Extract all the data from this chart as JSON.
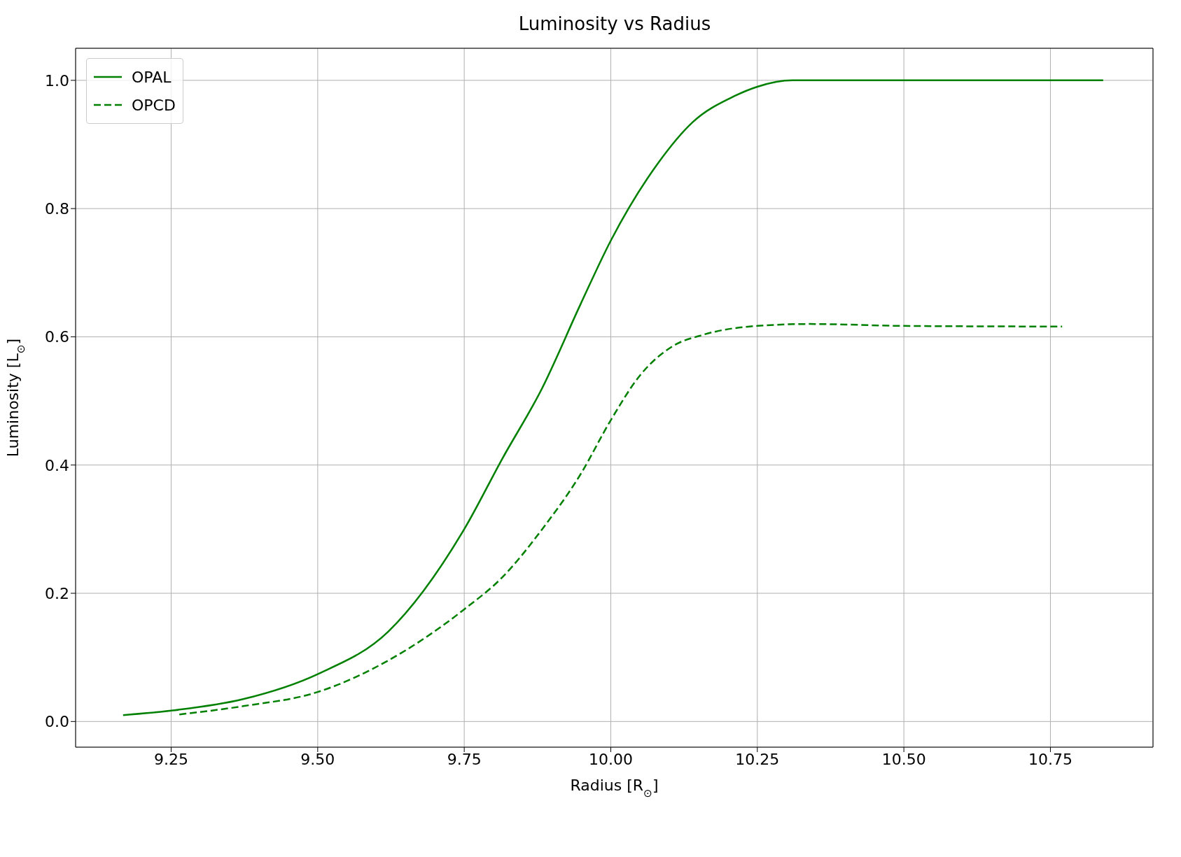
{
  "chart_data": {
    "type": "line",
    "title": "Luminosity vs Radius",
    "xlabel": "Radius [R$_{⊙}$]",
    "ylabel": "Luminosity [L$_{⊙}$]",
    "xlim": [
      9.087,
      10.925
    ],
    "xticks": [
      {
        "value": 9.25,
        "label": "9.25"
      },
      {
        "value": 9.5,
        "label": "9.50"
      },
      {
        "value": 9.75,
        "label": "9.75"
      },
      {
        "value": 10,
        "label": "10.00"
      },
      {
        "value": 10.25,
        "label": "10.25"
      },
      {
        "value": 10.5,
        "label": "10.50"
      },
      {
        "value": 10.75,
        "label": "10.75"
      }
    ],
    "ylim": [
      -0.04,
      1.05
    ],
    "yticks": [
      {
        "value": 0,
        "label": "0.0"
      },
      {
        "value": 0.2,
        "label": "0.2"
      },
      {
        "value": 0.4,
        "label": "0.4"
      },
      {
        "value": 0.6,
        "label": "0.6"
      },
      {
        "value": 0.8,
        "label": "0.8"
      },
      {
        "value": 1,
        "label": "1.0"
      }
    ],
    "grid": true,
    "legend": "top left",
    "marker": "none",
    "series": [
      {
        "name": "OPAL",
        "color": "#008000",
        "line_style": "solid",
        "x": [
          9.168,
          9.25,
          9.373,
          9.5,
          9.62,
          9.75,
          9.815,
          9.883,
          9.948,
          10.0,
          10.08,
          10.14,
          10.21,
          10.25,
          10.31,
          10.5,
          10.84
        ],
        "values": [
          0.01,
          0.017,
          0.035,
          0.074,
          0.14,
          0.3,
          0.41,
          0.52,
          0.65,
          0.75,
          0.87,
          0.935,
          0.975,
          0.99,
          1.0,
          1.0,
          1.0
        ]
      },
      {
        "name": "OPCD",
        "color": "#008000",
        "line_style": "dashed",
        "x": [
          9.264,
          9.373,
          9.5,
          9.62,
          9.75,
          9.815,
          9.883,
          9.948,
          10.0,
          10.05,
          10.105,
          10.157,
          10.25,
          10.34,
          10.5,
          10.77
        ],
        "values": [
          0.011,
          0.024,
          0.046,
          0.095,
          0.175,
          0.225,
          0.3,
          0.385,
          0.47,
          0.54,
          0.585,
          0.603,
          0.617,
          0.62,
          0.617,
          0.616
        ]
      }
    ]
  }
}
